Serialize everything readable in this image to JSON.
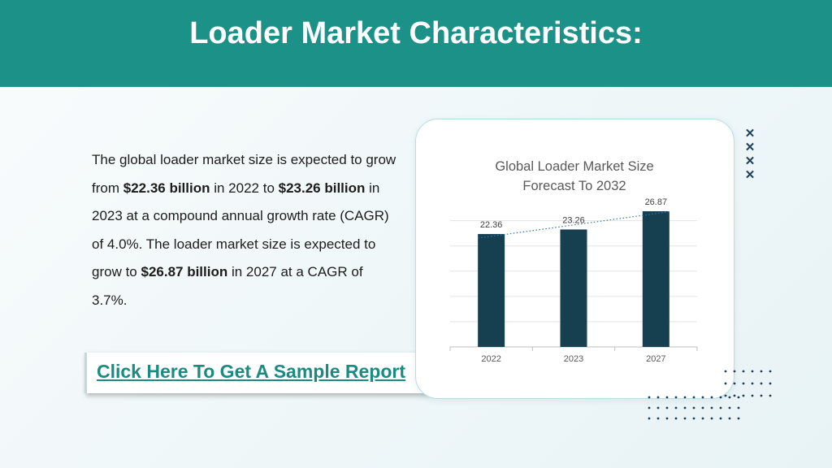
{
  "header": {
    "title": "Loader Market Characteristics:"
  },
  "body": {
    "p1": "The global loader market size is expected to grow from ",
    "b1": "$22.36 billion",
    "p2": " in 2022 to ",
    "b2": "$23.26 billion",
    "p3": " in 2023 at a compound annual growth rate (CAGR) of 4.0%. The loader market size is expected to grow to ",
    "b3": "$26.87 billion",
    "p4": " in 2027 at a CAGR of 3.7%."
  },
  "cta": {
    "label": "Click Here To Get A Sample Report"
  },
  "colors": {
    "header": "#1b9188",
    "bar": "#163f4f",
    "link": "#1b8a80"
  },
  "chart_data": {
    "type": "bar",
    "title": "Global Loader Market Size Forecast To 2032",
    "categories": [
      "2022",
      "2023",
      "2027"
    ],
    "values": [
      22.36,
      23.26,
      26.87
    ],
    "data_labels": [
      "22.36",
      "23.26",
      "26.87"
    ],
    "ylim": [
      0,
      28
    ],
    "grid": true,
    "trendline": "dotted linear",
    "xlabel": "",
    "ylabel": ""
  }
}
